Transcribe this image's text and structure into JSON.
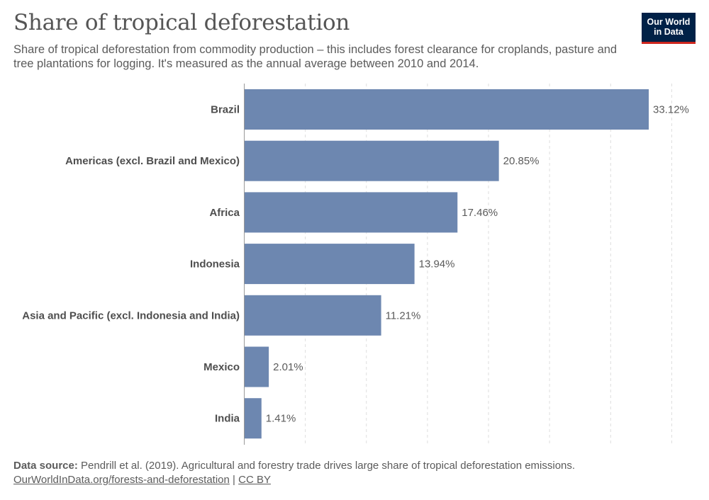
{
  "header": {
    "title": "Share of tropical deforestation",
    "subtitle": "Share of tropical deforestation from commodity production – this includes forest clearance for croplands, pasture and tree plantations for logging. It's measured as the annual average between 2010 and 2014."
  },
  "logo": {
    "line1": "Our World",
    "line2": "in Data"
  },
  "footer": {
    "source_label": "Data source:",
    "source_text": "Pendrill et al. (2019). Agricultural and forestry trade drives large share of tropical deforestation emissions.",
    "url": "OurWorldInData.org/forests-and-deforestation",
    "separator": "|",
    "license": "CC BY"
  },
  "chart_data": {
    "type": "bar",
    "orientation": "horizontal",
    "categories": [
      "Brazil",
      "Americas (excl. Brazil and Mexico)",
      "Africa",
      "Indonesia",
      "Asia and Pacific (excl. Indonesia and India)",
      "Mexico",
      "India"
    ],
    "values": [
      33.12,
      20.85,
      17.46,
      13.94,
      11.21,
      2.01,
      1.41
    ],
    "value_labels": [
      "33.12%",
      "20.85%",
      "17.46%",
      "13.94%",
      "11.21%",
      "2.01%",
      "1.41%"
    ],
    "xlim": [
      0,
      35
    ],
    "grid": true,
    "bar_color": "#6d87b0"
  }
}
